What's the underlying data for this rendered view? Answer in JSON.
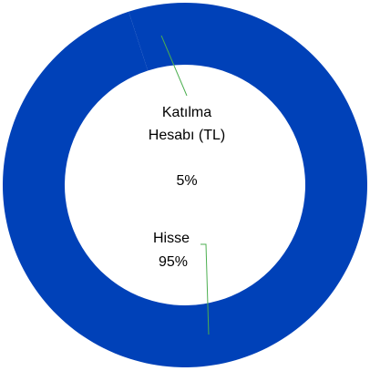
{
  "chart_data": {
    "type": "donut",
    "categories": [
      "Hisse",
      "Katılma Hesabı (TL)"
    ],
    "values": [
      95,
      5
    ],
    "value_labels": [
      "95%",
      "5%"
    ],
    "colors": [
      "#0041b8",
      "#0041b8"
    ]
  }
}
